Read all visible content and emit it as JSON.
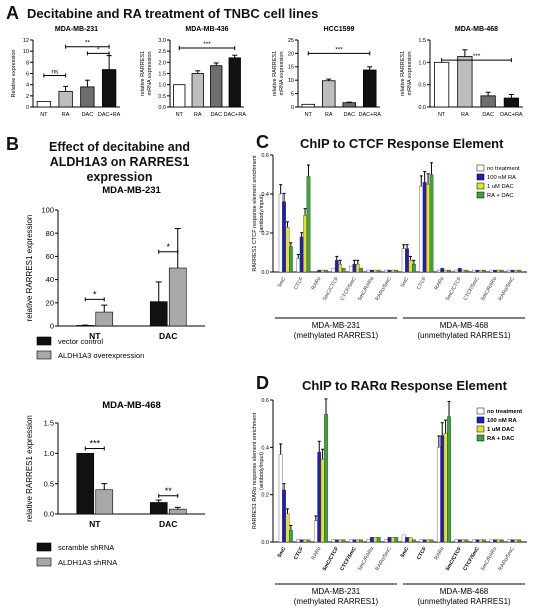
{
  "panelA": {
    "letter": "A",
    "title": "Decitabine and RA treatment of TNBC cell lines",
    "charts": [
      {
        "type": "bar",
        "title": "MDA-MB-231",
        "ylabel": "Relative expression",
        "categories": [
          "NT",
          "RA",
          "DAC",
          "DAC+RA"
        ],
        "values": [
          1.0,
          2.8,
          3.6,
          6.7
        ],
        "errors": [
          0,
          0.9,
          1.2,
          2.5
        ],
        "ylim": [
          0,
          12
        ],
        "yticks": [
          "0",
          "2",
          "4",
          "6",
          "8",
          "10",
          "12"
        ],
        "colors": [
          "#ffffff",
          "#bdbdbd",
          "#6e6e6e",
          "#111111"
        ],
        "sigs": [
          {
            "from": 0,
            "to": 1,
            "label": "ns",
            "level": 0.47
          },
          {
            "from": 1,
            "to": 3,
            "label": "**",
            "level": 0.9
          },
          {
            "from": 2,
            "to": 3,
            "label": "*",
            "level": 0.8
          }
        ]
      },
      {
        "type": "bar",
        "title": "MDA-MB-436",
        "ylabel": "relative RARRES1 mRNA expression",
        "categories": [
          "NT",
          "RA",
          "DAC",
          "DAC+RA"
        ],
        "values": [
          1.0,
          1.5,
          1.85,
          2.2
        ],
        "errors": [
          0,
          0.12,
          0.12,
          0.12
        ],
        "ylim": [
          0,
          3
        ],
        "yticks": [
          "0.0",
          "0.5",
          "1.0",
          "1.5",
          "2.0",
          "2.5",
          "3.0"
        ],
        "colors": [
          "#ffffff",
          "#bdbdbd",
          "#6e6e6e",
          "#111111"
        ],
        "sigs": [
          {
            "from": 0,
            "to": 3,
            "label": "***",
            "level": 0.88
          }
        ]
      },
      {
        "type": "bar",
        "title": "HCC1599",
        "ylabel": "relative RARRES1 mRNA expression",
        "categories": [
          "NT",
          "RA",
          "DAC",
          "DAC+RA"
        ],
        "values": [
          1.0,
          9.8,
          1.6,
          13.8
        ],
        "errors": [
          0,
          0.6,
          0.2,
          1.2
        ],
        "ylim": [
          0,
          25
        ],
        "yticks": [
          "0",
          "5",
          "10",
          "15",
          "20",
          "25"
        ],
        "colors": [
          "#ffffff",
          "#bdbdbd",
          "#6e6e6e",
          "#111111"
        ],
        "sigs": [
          {
            "from": 0,
            "to": 3,
            "label": "***",
            "level": 0.8
          }
        ]
      },
      {
        "type": "bar",
        "title": "MDA-MB-468",
        "ylabel": "relative RARRES1 mRNA expression",
        "categories": [
          "NT",
          "RA",
          "DAC",
          "DAC+RA"
        ],
        "values": [
          1.0,
          1.13,
          0.25,
          0.2
        ],
        "errors": [
          0,
          0.15,
          0.08,
          0.08
        ],
        "ylim": [
          0,
          1.5
        ],
        "yticks": [
          "0.0",
          "0.5",
          "1.0",
          "1.5"
        ],
        "colors": [
          "#ffffff",
          "#bdbdbd",
          "#6e6e6e",
          "#111111"
        ],
        "sigs": [
          {
            "from": 0,
            "to": 3,
            "label": "***",
            "level": 0.7
          }
        ]
      }
    ]
  },
  "panelB": {
    "letter": "B",
    "title_lines": [
      "Effect of decitabine and",
      "ALDH1A3 on RARRES1",
      "expression"
    ],
    "charts": [
      {
        "type": "bar",
        "title": "MDA-MB-231",
        "ylabel": "relative RARRES1 expression",
        "categories": [
          "NT",
          "DAC"
        ],
        "series": [
          {
            "name": "vector control",
            "color": "#111111",
            "values": [
              0.5,
              21
            ],
            "errors": [
              0.3,
              17
            ]
          },
          {
            "name": "ALDH1A3 overexpression",
            "color": "#a8a8a8",
            "values": [
              12,
              50
            ],
            "errors": [
              6,
              34
            ]
          }
        ],
        "ylim": [
          0,
          100
        ],
        "yticks": [
          "0",
          "20",
          "40",
          "60",
          "80",
          "100"
        ],
        "sigs": [
          {
            "group": 0,
            "label": "*",
            "level": 0.23
          },
          {
            "group": 1,
            "label": "*",
            "level": 0.64
          }
        ]
      },
      {
        "type": "bar",
        "title": "MDA-MB-468",
        "ylabel": "relative RARRES1 expression",
        "categories": [
          "NT",
          "DAC"
        ],
        "series": [
          {
            "name": "scramble shRNA",
            "color": "#111111",
            "values": [
              1.0,
              0.19
            ],
            "errors": [
              0,
              0.04
            ]
          },
          {
            "name": "ALDH1A3 shRNA",
            "color": "#a8a8a8",
            "values": [
              0.4,
              0.08
            ],
            "errors": [
              0.1,
              0.03
            ]
          }
        ],
        "ylim": [
          0,
          1.5
        ],
        "yticks": [
          "0.0",
          "0.5",
          "1.0",
          "1.5"
        ],
        "sigs": [
          {
            "group": 0,
            "label": "***",
            "level": 0.72
          },
          {
            "group": 1,
            "label": "**",
            "level": 0.2
          }
        ]
      }
    ]
  },
  "panelC": {
    "letter": "C",
    "title": "ChIP to CTCF Response Element",
    "chart_data": {
      "type": "bar",
      "ylabel_lines": [
        "RARRES1 CTCF response element enrichment",
        "(antibody/input)"
      ],
      "ylim": [
        0,
        0.6
      ],
      "yticks": [
        "0.0",
        "0.2",
        "0.4",
        "0.6"
      ],
      "categories": [
        "5mC",
        "CTCF",
        "RARα",
        "5mC/CTCF",
        "CTCF/5mC",
        "5mC/RARα",
        "RARα/5mC",
        "5mC",
        "CTCF",
        "RARα",
        "5mC/CTCF",
        "CTCF/5mC",
        "5mC/RARα",
        "RARα/5mC"
      ],
      "category_bold": [
        false,
        false,
        false,
        false,
        false,
        false,
        false,
        false,
        false,
        false,
        false,
        false,
        false,
        false
      ],
      "groups": [
        {
          "lines": [
            "MDA-MB-231",
            "(methylated RARRES1)"
          ]
        },
        {
          "lines": [
            "MDA-MB-468",
            "(unmethylated RARRES1)"
          ]
        }
      ],
      "series": [
        {
          "name": "no treatment",
          "color": "#ffffff",
          "values": [
            0.4,
            0.07,
            0.0,
            0.02,
            0.03,
            0.01,
            0.01,
            0.12,
            0.44,
            0.01,
            0.01,
            0.01,
            0.01,
            0.01
          ]
        },
        {
          "name": "100 nM RA",
          "color": "#1f1fb8",
          "values": [
            0.36,
            0.18,
            0.01,
            0.06,
            0.04,
            0.01,
            0.01,
            0.12,
            0.46,
            0.02,
            0.02,
            0.01,
            0.01,
            0.01
          ]
        },
        {
          "name": "1 uM DAC",
          "color": "#e8e02a",
          "values": [
            0.23,
            0.29,
            0.01,
            0.04,
            0.04,
            0.01,
            0.01,
            0.06,
            0.45,
            0.01,
            0.01,
            0.01,
            0.01,
            0.01
          ]
        },
        {
          "name": "RA + DAC",
          "color": "#3aa63a",
          "values": [
            0.13,
            0.49,
            0.01,
            0.02,
            0.02,
            0.01,
            0.01,
            0.04,
            0.5,
            0.01,
            0.01,
            0.01,
            0.01,
            0.01
          ]
        }
      ],
      "legend_bold": false
    }
  },
  "panelD": {
    "letter": "D",
    "title": "ChIP to RARα Response Element",
    "chart_data": {
      "type": "bar",
      "ylabel_lines": [
        "RARRES1 RARα response element enrichment",
        "(antibody/input)"
      ],
      "ylim": [
        0,
        0.6
      ],
      "yticks": [
        "0.0",
        "0.2",
        "0.4",
        "0.6"
      ],
      "categories": [
        "5mC",
        "CTCF",
        "RARα",
        "5mC/CTCF",
        "CTCF/5mC",
        "5mC/RARα",
        "RARα/5mC",
        "5mC",
        "CTCF",
        "RARα",
        "5mC/CTCF",
        "CTCF/5mC",
        "5mC/RARα",
        "RARα/5mC"
      ],
      "category_bold": [
        true,
        true,
        false,
        true,
        true,
        false,
        false,
        true,
        true,
        false,
        true,
        true,
        false,
        false
      ],
      "groups": [
        {
          "lines": [
            "MDA-MB-231",
            "(methylated RARRES1)"
          ]
        },
        {
          "lines": [
            "MDA-MB-468",
            "(unmethylated RARRES1)"
          ]
        }
      ],
      "series": [
        {
          "name": "no treatment",
          "color": "#ffffff",
          "values": [
            0.37,
            0.01,
            0.09,
            0.01,
            0.01,
            0.01,
            0.01,
            0.03,
            0.01,
            0.4,
            0.01,
            0.01,
            0.01,
            0.01
          ]
        },
        {
          "name": "100 nM RA",
          "color": "#1f1fb8",
          "values": [
            0.22,
            0.01,
            0.38,
            0.01,
            0.01,
            0.02,
            0.02,
            0.02,
            0.01,
            0.45,
            0.01,
            0.01,
            0.01,
            0.01
          ]
        },
        {
          "name": "1 uM DAC",
          "color": "#e8e02a",
          "values": [
            0.12,
            0.01,
            0.35,
            0.01,
            0.01,
            0.02,
            0.02,
            0.02,
            0.01,
            0.46,
            0.01,
            0.01,
            0.01,
            0.01
          ]
        },
        {
          "name": "RA + DAC",
          "color": "#3aa63a",
          "values": [
            0.05,
            0.01,
            0.54,
            0.01,
            0.01,
            0.02,
            0.02,
            0.01,
            0.01,
            0.53,
            0.01,
            0.01,
            0.01,
            0.01
          ]
        }
      ],
      "legend_bold": true
    }
  }
}
